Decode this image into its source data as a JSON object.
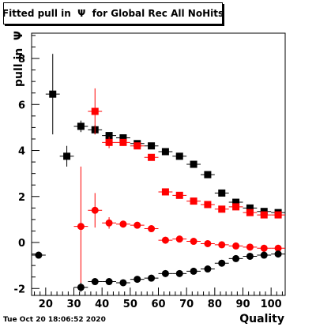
{
  "title": "Fitted pull in  Ψ  for Global Rec All NoHits",
  "timestamp": "Tue Oct 20 18:06:52 2020",
  "chart_data": {
    "type": "scatter",
    "title": "Fitted pull in  Ψ  for Global Rec All NoHits",
    "xlabel": "Quality",
    "ylabel": "pull in  Ψ",
    "xlim": [
      15,
      105
    ],
    "ylim": [
      -2.3,
      9.1
    ],
    "xticks": [
      20,
      30,
      40,
      50,
      60,
      70,
      80,
      90,
      100
    ],
    "yticks": [
      -2,
      0,
      2,
      4,
      6,
      8
    ],
    "grid": false,
    "series": [
      {
        "color": "#000000",
        "marker": "square",
        "points": [
          {
            "x": 22.5,
            "y": 6.45,
            "ey": 1.75
          },
          {
            "x": 27.5,
            "y": 3.75,
            "ey": 0.45
          },
          {
            "x": 32.5,
            "y": 5.05,
            "ey": 0.25
          },
          {
            "x": 37.5,
            "y": 4.9,
            "ey": 0.2
          },
          {
            "x": 42.5,
            "y": 4.65,
            "ey": 0.12
          },
          {
            "x": 47.5,
            "y": 4.55,
            "ey": 0.1
          },
          {
            "x": 52.5,
            "y": 4.3,
            "ey": 0.1
          },
          {
            "x": 57.5,
            "y": 4.2,
            "ey": 0.08
          },
          {
            "x": 62.5,
            "y": 3.95,
            "ey": 0.08
          },
          {
            "x": 67.5,
            "y": 3.75,
            "ey": 0.08
          },
          {
            "x": 72.5,
            "y": 3.4,
            "ey": 0.07
          },
          {
            "x": 77.5,
            "y": 2.95,
            "ey": 0.07
          },
          {
            "x": 82.5,
            "y": 2.15,
            "ey": 0.06
          },
          {
            "x": 87.5,
            "y": 1.75,
            "ey": 0.06
          },
          {
            "x": 92.5,
            "y": 1.5,
            "ey": 0.05
          },
          {
            "x": 97.5,
            "y": 1.35,
            "ey": 0.05
          },
          {
            "x": 102.5,
            "y": 1.3,
            "ey": 0.05
          }
        ]
      },
      {
        "color": "#ff0000",
        "marker": "square",
        "points": [
          {
            "x": 37.5,
            "y": 5.7,
            "ey": 1.0
          },
          {
            "x": 42.5,
            "y": 4.35,
            "ey": 0.25
          },
          {
            "x": 47.5,
            "y": 4.35,
            "ey": 0.15
          },
          {
            "x": 52.5,
            "y": 4.2,
            "ey": 0.12
          },
          {
            "x": 57.5,
            "y": 3.7,
            "ey": 0.1
          },
          {
            "x": 62.5,
            "y": 2.2,
            "ey": 0.08
          },
          {
            "x": 67.5,
            "y": 2.05,
            "ey": 0.08
          },
          {
            "x": 72.5,
            "y": 1.8,
            "ey": 0.07
          },
          {
            "x": 77.5,
            "y": 1.65,
            "ey": 0.07
          },
          {
            "x": 82.5,
            "y": 1.45,
            "ey": 0.06
          },
          {
            "x": 87.5,
            "y": 1.55,
            "ey": 0.06
          },
          {
            "x": 92.5,
            "y": 1.3,
            "ey": 0.05
          },
          {
            "x": 97.5,
            "y": 1.2,
            "ey": 0.05
          },
          {
            "x": 102.5,
            "y": 1.2,
            "ey": 0.05
          }
        ]
      },
      {
        "color": "#ff0000",
        "marker": "circle",
        "points": [
          {
            "x": 32.5,
            "y": 0.7,
            "ey": 2.6
          },
          {
            "x": 37.5,
            "y": 1.4,
            "ey": 0.75
          },
          {
            "x": 42.5,
            "y": 0.85,
            "ey": 0.25
          },
          {
            "x": 47.5,
            "y": 0.8,
            "ey": 0.15
          },
          {
            "x": 52.5,
            "y": 0.75,
            "ey": 0.12
          },
          {
            "x": 57.5,
            "y": 0.6,
            "ey": 0.1
          },
          {
            "x": 62.5,
            "y": 0.1,
            "ey": 0.08
          },
          {
            "x": 67.5,
            "y": 0.15,
            "ey": 0.08
          },
          {
            "x": 72.5,
            "y": 0.05,
            "ey": 0.07
          },
          {
            "x": 77.5,
            "y": -0.05,
            "ey": 0.07
          },
          {
            "x": 82.5,
            "y": -0.1,
            "ey": 0.06
          },
          {
            "x": 87.5,
            "y": -0.15,
            "ey": 0.06
          },
          {
            "x": 92.5,
            "y": -0.2,
            "ey": 0.05
          },
          {
            "x": 97.5,
            "y": -0.25,
            "ey": 0.05
          },
          {
            "x": 102.5,
            "y": -0.25,
            "ey": 0.05
          }
        ]
      },
      {
        "color": "#000000",
        "marker": "circle",
        "points": [
          {
            "x": 17.5,
            "y": -0.55,
            "ey": 0.0
          },
          {
            "x": 32.5,
            "y": -1.95,
            "ey": 0.2
          },
          {
            "x": 37.5,
            "y": -1.7,
            "ey": 0.12
          },
          {
            "x": 42.5,
            "y": -1.7,
            "ey": 0.1
          },
          {
            "x": 47.5,
            "y": -1.75,
            "ey": 0.08
          },
          {
            "x": 52.5,
            "y": -1.6,
            "ey": 0.07
          },
          {
            "x": 57.5,
            "y": -1.55,
            "ey": 0.07
          },
          {
            "x": 62.5,
            "y": -1.35,
            "ey": 0.06
          },
          {
            "x": 67.5,
            "y": -1.35,
            "ey": 0.06
          },
          {
            "x": 72.5,
            "y": -1.25,
            "ey": 0.06
          },
          {
            "x": 77.5,
            "y": -1.15,
            "ey": 0.05
          },
          {
            "x": 82.5,
            "y": -0.9,
            "ey": 0.05
          },
          {
            "x": 87.5,
            "y": -0.7,
            "ey": 0.05
          },
          {
            "x": 92.5,
            "y": -0.6,
            "ey": 0.04
          },
          {
            "x": 97.5,
            "y": -0.55,
            "ey": 0.04
          },
          {
            "x": 102.5,
            "y": -0.5,
            "ey": 0.04
          }
        ]
      }
    ]
  }
}
